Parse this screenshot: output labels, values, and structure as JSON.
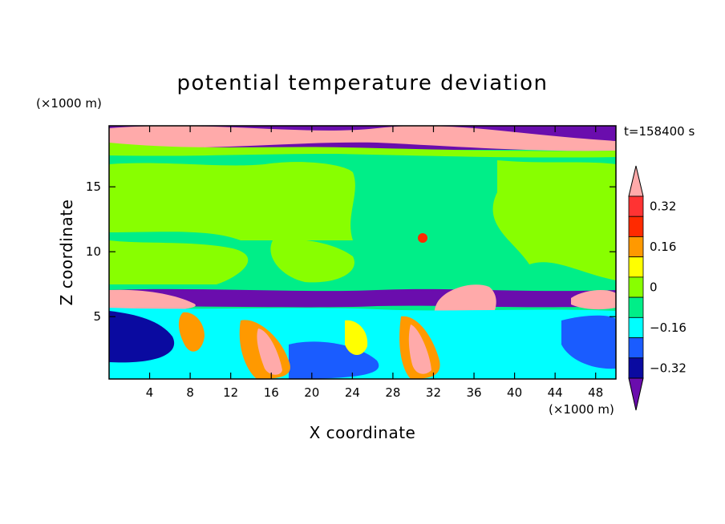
{
  "chart_data": {
    "type": "heatmap",
    "title": "potential temperature deviation",
    "xlabel": "X coordinate",
    "ylabel": "Z coordinate",
    "x_unit": "(×1000 m)",
    "y_unit": "(×1000 m)",
    "time_label": "t=158400 s",
    "xlim": [
      0,
      50
    ],
    "ylim": [
      0.2,
      19.7
    ],
    "x_ticks": [
      "4",
      "8",
      "12",
      "16",
      "20",
      "24",
      "28",
      "32",
      "36",
      "40",
      "44",
      "48"
    ],
    "y_ticks": [
      "5",
      "10",
      "15"
    ],
    "colorbar": {
      "tick_labels": [
        "0.32",
        "0.16",
        "0",
        "−0.16",
        "−0.32"
      ],
      "tick_values": [
        0.32,
        0.16,
        0,
        -0.16,
        -0.32
      ],
      "levels": [
        -0.4,
        -0.32,
        -0.24,
        -0.16,
        -0.08,
        0,
        0.08,
        0.16,
        0.24,
        0.32,
        0.4
      ],
      "colors": [
        "#6a0dad",
        "#0a0aa0",
        "#1a5cff",
        "#00ffff",
        "#00ee88",
        "#88ff00",
        "#ffff00",
        "#ff9900",
        "#ff2a00",
        "#ff3333",
        "#ffaaaa"
      ],
      "extend": "both"
    }
  }
}
